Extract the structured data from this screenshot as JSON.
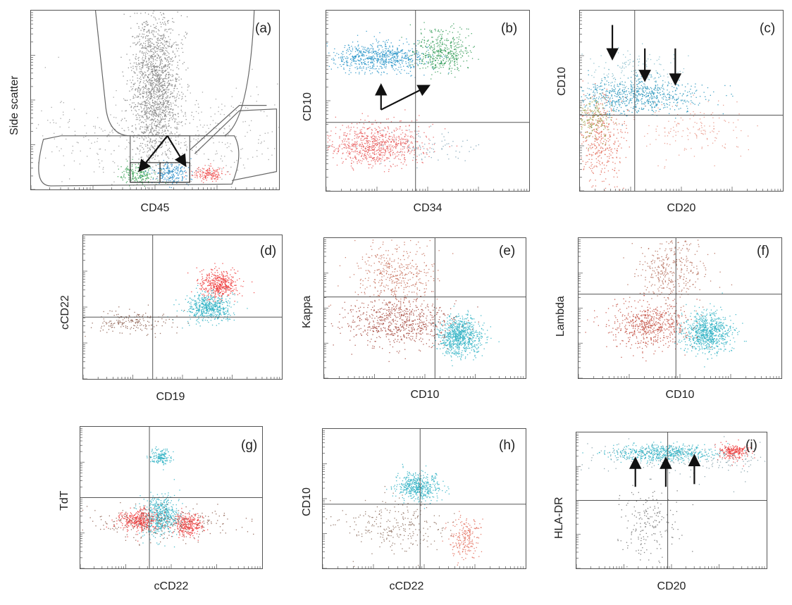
{
  "chart_data": [
    {
      "type": "scatter",
      "panel": "(a)",
      "xlabel": "CD45",
      "ylabel": "Side scatter",
      "scale": "log",
      "quadrant_lines": false,
      "populations": [
        {
          "color": "#7d7d7d",
          "cx": 0.5,
          "cy": 0.58,
          "sx": 0.05,
          "sy": 0.22,
          "n": 1700
        },
        {
          "color": "#9a9a9a",
          "cx": 0.55,
          "cy": 0.28,
          "sx": 0.3,
          "sy": 0.14,
          "n": 500
        },
        {
          "color": "#2e9e4a",
          "cx": 0.43,
          "cy": 0.09,
          "sx": 0.035,
          "sy": 0.03,
          "n": 180
        },
        {
          "color": "#1e88c8",
          "cx": 0.56,
          "cy": 0.09,
          "sx": 0.035,
          "sy": 0.03,
          "n": 200
        },
        {
          "color": "#ee4d4d",
          "cx": 0.71,
          "cy": 0.09,
          "sx": 0.03,
          "sy": 0.02,
          "n": 160
        }
      ],
      "arrows": [
        [
          0.55,
          0.3,
          0.44,
          0.11
        ],
        [
          0.55,
          0.3,
          0.62,
          0.14
        ]
      ]
    },
    {
      "type": "scatter",
      "panel": "(b)",
      "xlabel": "CD34",
      "ylabel": "CD10",
      "scale": "log",
      "quadrant_lines": [
        0.44,
        0.38
      ],
      "populations": [
        {
          "color": "#1e8fc5",
          "cx": 0.25,
          "cy": 0.74,
          "sx": 0.12,
          "sy": 0.04,
          "n": 700
        },
        {
          "color": "#2f9a55",
          "cx": 0.57,
          "cy": 0.77,
          "sx": 0.07,
          "sy": 0.06,
          "n": 450
        },
        {
          "color": "#e85a5a",
          "cx": 0.24,
          "cy": 0.26,
          "sx": 0.12,
          "sy": 0.06,
          "n": 800
        },
        {
          "color": "#7aa0b4",
          "cx": 0.5,
          "cy": 0.25,
          "sx": 0.12,
          "sy": 0.05,
          "n": 80
        }
      ],
      "arrows": [
        [
          0.27,
          0.45,
          0.27,
          0.58
        ],
        [
          0.27,
          0.45,
          0.5,
          0.58
        ]
      ]
    },
    {
      "type": "scatter",
      "panel": "(c)",
      "xlabel": "CD20",
      "ylabel": "CD10",
      "scale": "log",
      "quadrant_lines": [
        0.27,
        0.42
      ],
      "populations": [
        {
          "color": "#1c8fb8",
          "cx": 0.28,
          "cy": 0.53,
          "sx": 0.15,
          "sy": 0.05,
          "n": 700
        },
        {
          "color": "#7fb8c8",
          "cx": 0.25,
          "cy": 0.66,
          "sx": 0.12,
          "sy": 0.07,
          "n": 160
        },
        {
          "color": "#e26655",
          "cx": 0.1,
          "cy": 0.28,
          "sx": 0.06,
          "sy": 0.12,
          "n": 420
        },
        {
          "color": "#8f9a3a",
          "cx": 0.07,
          "cy": 0.4,
          "sx": 0.04,
          "sy": 0.06,
          "n": 150
        },
        {
          "color": "#e89080",
          "cx": 0.56,
          "cy": 0.34,
          "sx": 0.12,
          "sy": 0.07,
          "n": 150
        }
      ],
      "arrows": [
        [
          0.16,
          0.92,
          0.16,
          0.74
        ],
        [
          0.32,
          0.79,
          0.32,
          0.62
        ],
        [
          0.47,
          0.79,
          0.47,
          0.6
        ]
      ]
    },
    {
      "type": "scatter",
      "panel": "(d)",
      "xlabel": "CD19",
      "ylabel": "cCD22",
      "scale": "log",
      "quadrant_lines": [
        0.35,
        0.43
      ],
      "populations": [
        {
          "color": "#ee3a3a",
          "cx": 0.68,
          "cy": 0.66,
          "sx": 0.05,
          "sy": 0.05,
          "n": 450
        },
        {
          "color": "#2cb0c3",
          "cx": 0.63,
          "cy": 0.5,
          "sx": 0.06,
          "sy": 0.05,
          "n": 550
        },
        {
          "color": "#8a5a4a",
          "cx": 0.25,
          "cy": 0.4,
          "sx": 0.09,
          "sy": 0.04,
          "n": 180
        }
      ],
      "arrows": []
    },
    {
      "type": "scatter",
      "panel": "(e)",
      "xlabel": "CD10",
      "ylabel": "Kappa",
      "scale": "log",
      "quadrant_lines": [
        0.55,
        0.58
      ],
      "populations": [
        {
          "color": "#2cb0c3",
          "cx": 0.67,
          "cy": 0.3,
          "sx": 0.05,
          "sy": 0.07,
          "n": 800
        },
        {
          "color": "#a4473c",
          "cx": 0.37,
          "cy": 0.4,
          "sx": 0.13,
          "sy": 0.09,
          "n": 700
        },
        {
          "color": "#c46a55",
          "cx": 0.35,
          "cy": 0.74,
          "sx": 0.1,
          "sy": 0.11,
          "n": 400
        }
      ],
      "arrows": []
    },
    {
      "type": "scatter",
      "panel": "(f)",
      "xlabel": "CD10",
      "ylabel": "Lambda",
      "scale": "log",
      "quadrant_lines": [
        0.48,
        0.6
      ],
      "populations": [
        {
          "color": "#2cb0c3",
          "cx": 0.63,
          "cy": 0.33,
          "sx": 0.06,
          "sy": 0.07,
          "n": 800
        },
        {
          "color": "#c24a3c",
          "cx": 0.35,
          "cy": 0.38,
          "sx": 0.1,
          "sy": 0.08,
          "n": 600
        },
        {
          "color": "#b26652",
          "cx": 0.45,
          "cy": 0.78,
          "sx": 0.09,
          "sy": 0.12,
          "n": 350
        }
      ],
      "arrows": []
    },
    {
      "type": "scatter",
      "panel": "(g)",
      "xlabel": "cCD22",
      "ylabel": "TdT",
      "scale": "log",
      "quadrant_lines": [
        0.38,
        0.5
      ],
      "populations": [
        {
          "color": "#2cb0c3",
          "cx": 0.44,
          "cy": 0.79,
          "sx": 0.03,
          "sy": 0.03,
          "n": 160
        },
        {
          "color": "#2cb0c3",
          "cx": 0.44,
          "cy": 0.37,
          "sx": 0.05,
          "sy": 0.07,
          "n": 550
        },
        {
          "color": "#ee3a3a",
          "cx": 0.32,
          "cy": 0.34,
          "sx": 0.05,
          "sy": 0.04,
          "n": 380
        },
        {
          "color": "#ee3a3a",
          "cx": 0.59,
          "cy": 0.31,
          "sx": 0.04,
          "sy": 0.04,
          "n": 300
        },
        {
          "color": "#8a5a4a",
          "cx": 0.45,
          "cy": 0.33,
          "sx": 0.2,
          "sy": 0.06,
          "n": 250
        }
      ],
      "arrows": []
    },
    {
      "type": "scatter",
      "panel": "(h)",
      "xlabel": "cCD22",
      "ylabel": "CD10",
      "scale": "log",
      "quadrant_lines": [
        0.48,
        0.46
      ],
      "populations": [
        {
          "color": "#2cb0c3",
          "cx": 0.47,
          "cy": 0.59,
          "sx": 0.05,
          "sy": 0.05,
          "n": 500
        },
        {
          "color": "#e26655",
          "cx": 0.7,
          "cy": 0.22,
          "sx": 0.04,
          "sy": 0.08,
          "n": 200
        },
        {
          "color": "#8a6a5a",
          "cx": 0.35,
          "cy": 0.3,
          "sx": 0.14,
          "sy": 0.1,
          "n": 260
        }
      ],
      "arrows": []
    },
    {
      "type": "scatter",
      "panel": "(i)",
      "xlabel": "CD20",
      "ylabel": "HLA-DR",
      "scale": "log",
      "quadrant_lines": [
        0.48,
        0.5
      ],
      "populations": [
        {
          "color": "#2cb0c3",
          "cx": 0.46,
          "cy": 0.85,
          "sx": 0.14,
          "sy": 0.03,
          "n": 600
        },
        {
          "color": "#ee3a3a",
          "cx": 0.82,
          "cy": 0.86,
          "sx": 0.04,
          "sy": 0.03,
          "n": 220
        },
        {
          "color": "#6a6a6a",
          "cx": 0.37,
          "cy": 0.32,
          "sx": 0.08,
          "sy": 0.12,
          "n": 180
        },
        {
          "color": "#7c9aa5",
          "cx": 0.55,
          "cy": 0.8,
          "sx": 0.28,
          "sy": 0.06,
          "n": 200
        }
      ],
      "arrows": [
        [
          0.31,
          0.6,
          0.31,
          0.8
        ],
        [
          0.47,
          0.6,
          0.47,
          0.8
        ],
        [
          0.62,
          0.62,
          0.62,
          0.82
        ]
      ]
    }
  ]
}
